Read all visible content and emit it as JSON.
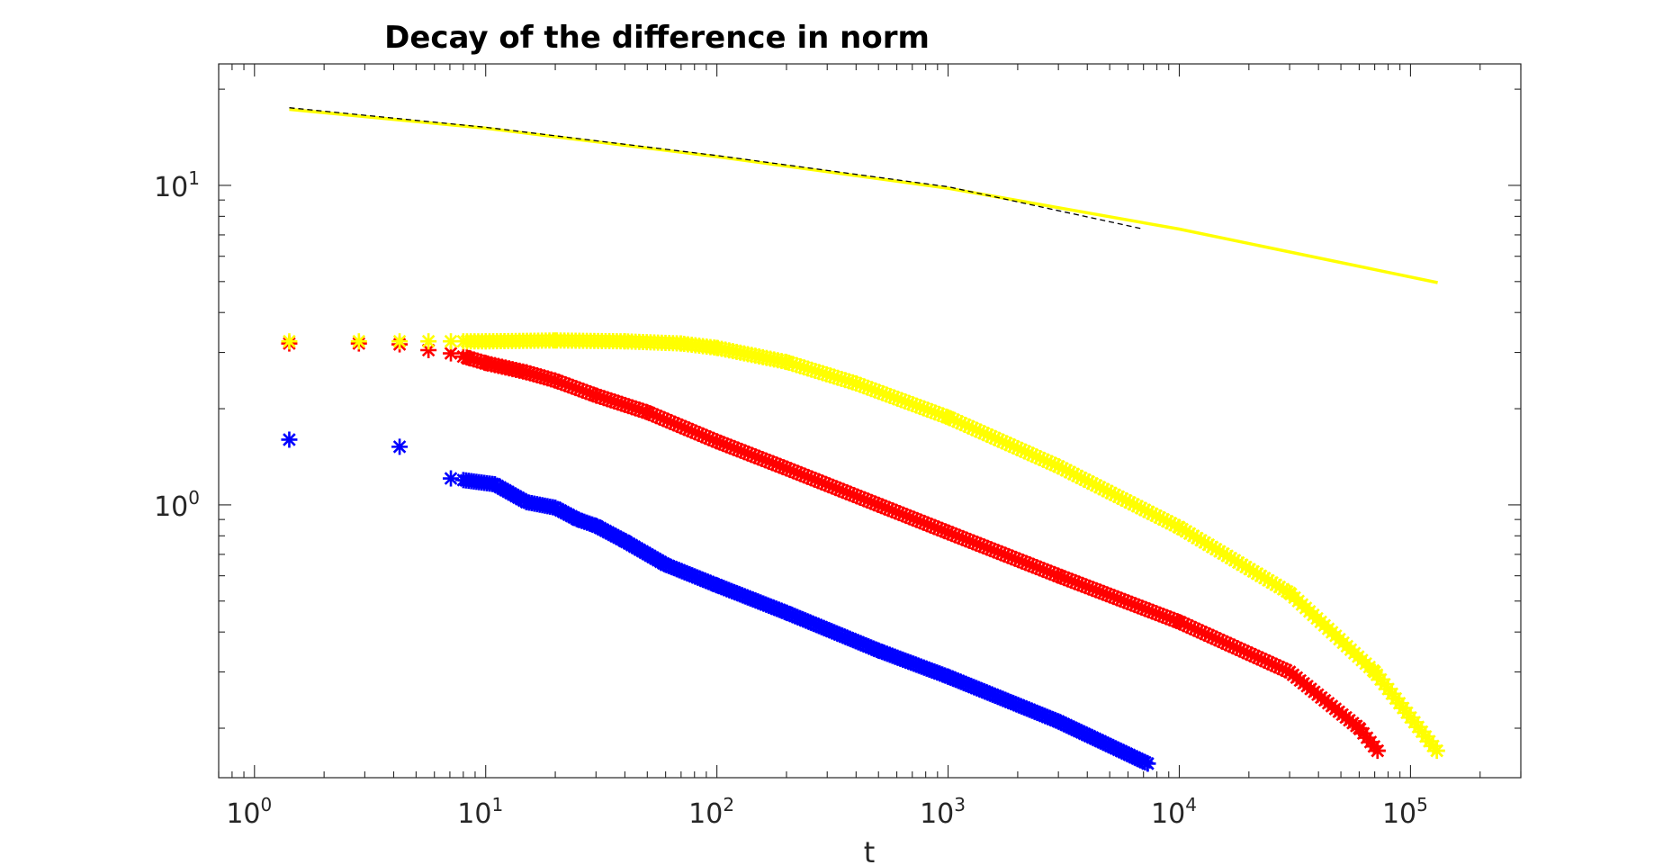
{
  "chart_data": {
    "type": "scatter",
    "title": "Decay of the difference in norm",
    "xlabel": "t",
    "ylabel": "",
    "x_scale": "log",
    "y_scale": "log",
    "xlim": [
      0.7,
      300000
    ],
    "ylim": [
      0.14,
      24
    ],
    "grid": false,
    "legend": "none",
    "xticks": [
      {
        "base": "10",
        "exp": "0",
        "value": 1
      },
      {
        "base": "10",
        "exp": "1",
        "value": 10
      },
      {
        "base": "10",
        "exp": "2",
        "value": 100
      },
      {
        "base": "10",
        "exp": "3",
        "value": 1000
      },
      {
        "base": "10",
        "exp": "4",
        "value": 10000
      },
      {
        "base": "10",
        "exp": "5",
        "value": 100000
      }
    ],
    "yticks": [
      {
        "base": "10",
        "exp": "0",
        "value": 1
      },
      {
        "base": "10",
        "exp": "1",
        "value": 10
      }
    ],
    "series": [
      {
        "color": "#FFFF00",
        "marker": "line",
        "kind": "line",
        "x": [
          1.414,
          10,
          100,
          1000,
          10000,
          131072
        ],
        "y": [
          17.3,
          15.1,
          12.3,
          9.8,
          7.3,
          4.96
        ]
      },
      {
        "color": "#000000",
        "marker": "dashed",
        "kind": "dashed",
        "x": [
          1.414,
          10,
          100,
          1000,
          7000
        ],
        "y": [
          17.5,
          15.2,
          12.4,
          9.9,
          7.3
        ]
      },
      {
        "color": "#0000FF",
        "marker": "*",
        "kind": "scatter",
        "x": [
          1.414,
          4.243,
          7.07,
          10.95,
          15,
          20,
          25,
          30,
          40,
          60,
          100,
          200,
          500,
          1000,
          3000,
          7300
        ],
        "y": [
          1.6,
          1.52,
          1.21,
          1.16,
          1.02,
          0.98,
          0.9,
          0.86,
          0.77,
          0.65,
          0.56,
          0.46,
          0.35,
          0.29,
          0.21,
          0.155
        ]
      },
      {
        "color": "#FF0000",
        "marker": "*",
        "kind": "scatter",
        "x": [
          1.414,
          2.828,
          4.243,
          5.657,
          7.07,
          8.485,
          10,
          15,
          20,
          30,
          50,
          100,
          200,
          500,
          1000,
          3000,
          10000,
          30000,
          60000,
          72000
        ],
        "y": [
          3.2,
          3.2,
          3.18,
          3.05,
          2.98,
          2.88,
          2.78,
          2.6,
          2.45,
          2.2,
          1.95,
          1.58,
          1.3,
          1.0,
          0.82,
          0.6,
          0.43,
          0.3,
          0.2,
          0.17
        ]
      },
      {
        "color": "#FFFF00",
        "marker": "*",
        "kind": "scatter",
        "x": [
          1.414,
          2.828,
          4.243,
          5.657,
          7.07,
          10,
          20,
          40,
          70,
          100,
          200,
          400,
          1000,
          3000,
          10000,
          30000,
          70000,
          130000
        ],
        "y": [
          3.25,
          3.25,
          3.25,
          3.25,
          3.25,
          3.25,
          3.27,
          3.25,
          3.2,
          3.1,
          2.8,
          2.4,
          1.88,
          1.32,
          0.85,
          0.53,
          0.3,
          0.17
        ]
      }
    ]
  }
}
